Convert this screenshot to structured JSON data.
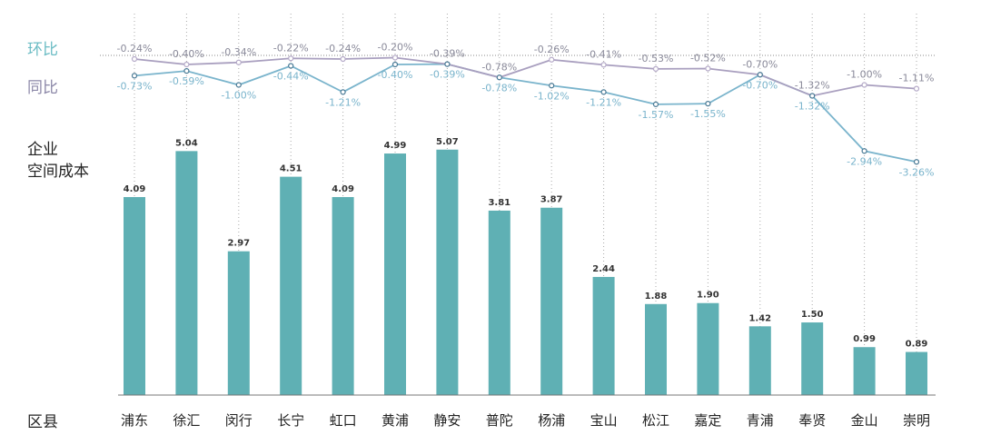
{
  "labels": {
    "mom": "环比",
    "yoy": "同比",
    "metric_line1": "企业",
    "metric_line2": "空间成本",
    "category_axis": "区县"
  },
  "colors": {
    "bar": "#5fb0b4",
    "mom": "#a99fbf",
    "yoy": "#7ab4cc",
    "mom_text": "#6bbcc4",
    "yoy_text": "#8c88a8"
  },
  "chart_data": {
    "type": "bar+line",
    "categories": [
      "浦东",
      "徐汇",
      "闵行",
      "长宁",
      "虹口",
      "黄浦",
      "静安",
      "普陀",
      "杨浦",
      "宝山",
      "松江",
      "嘉定",
      "青浦",
      "奉贤",
      "金山",
      "崇明"
    ],
    "bar_series": {
      "name": "企业空间成本",
      "values": [
        4.09,
        5.04,
        2.97,
        4.51,
        4.09,
        4.99,
        5.07,
        3.81,
        3.87,
        2.44,
        1.88,
        1.9,
        1.42,
        1.5,
        0.99,
        0.89
      ],
      "labels": [
        "4.09",
        "5.04",
        "2.97",
        "4.51",
        "4.09",
        "4.99",
        "5.07",
        "3.81",
        "3.87",
        "2.44",
        "1.88",
        "1.90",
        "1.42",
        "1.50",
        "0.99",
        "0.89"
      ]
    },
    "line_series": [
      {
        "name": "环比",
        "values": [
          -0.24,
          -0.4,
          -0.34,
          -0.22,
          -0.24,
          -0.2,
          -0.39,
          -0.78,
          -0.26,
          -0.41,
          -0.53,
          -0.52,
          -0.7,
          -1.32,
          -1.0,
          -1.11
        ],
        "labels": [
          "-0.24%",
          "-0.40%",
          "-0.34%",
          "-0.22%",
          "-0.24%",
          "-0.20%",
          "-0.39%",
          "-0.78%",
          "-0.26%",
          "-0.41%",
          "-0.53%",
          "-0.52%",
          "-0.70%",
          "-1.32%",
          "-1.00%",
          "-1.11%"
        ]
      },
      {
        "name": "同比",
        "values": [
          -0.73,
          -0.59,
          -1.0,
          -0.44,
          -1.21,
          -0.4,
          -0.39,
          -0.78,
          -1.02,
          -1.21,
          -1.57,
          -1.55,
          -0.7,
          -1.32,
          -2.94,
          -3.26
        ],
        "labels": [
          "-0.73%",
          "-0.59%",
          "-1.00%",
          "-0.44%",
          "-1.21%",
          "-0.40%",
          "-0.39%",
          "-0.78%",
          "-1.02%",
          "-1.21%",
          "-1.57%",
          "-1.55%",
          "-0.70%",
          "-1.32%",
          "-2.94%",
          "-3.26%"
        ]
      }
    ],
    "grid": "dotted vertical per category"
  }
}
